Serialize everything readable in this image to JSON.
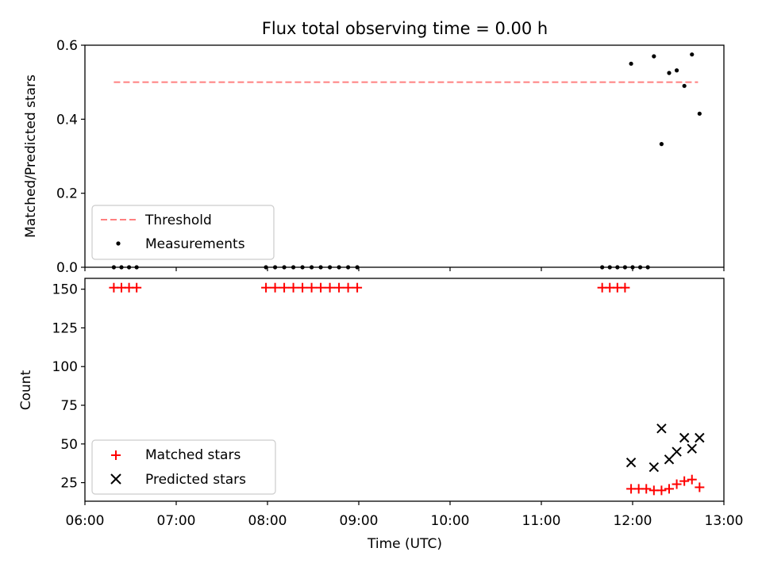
{
  "figure": {
    "title": "Flux total observing time = 0.00 h"
  },
  "chart_data": [
    {
      "type": "scatter",
      "panel": "top",
      "ylabel": "Matched/Predicted stars",
      "xlabel": "",
      "xlim": [
        "06:00",
        "13:00"
      ],
      "ylim": [
        0,
        0.6
      ],
      "yticks": [
        0.0,
        0.2,
        0.4,
        0.6
      ],
      "ytick_labels": [
        "0.0",
        "0.2",
        "0.4",
        "0.6"
      ],
      "xticks": [
        "06:00",
        "07:00",
        "08:00",
        "09:00",
        "10:00",
        "11:00",
        "12:00",
        "13:00"
      ],
      "legend_position": "lower-left",
      "series": [
        {
          "name": "Threshold",
          "kind": "dashed-line",
          "color": "#ff8080",
          "x": [
            "06:19",
            "12:43"
          ],
          "y": [
            0.5,
            0.5
          ]
        },
        {
          "name": "Measurements",
          "kind": "dots",
          "color": "#000000",
          "x": [
            "06:19",
            "06:24",
            "06:29",
            "06:34",
            "07:59",
            "08:05",
            "08:11",
            "08:17",
            "08:23",
            "08:29",
            "08:35",
            "08:41",
            "08:47",
            "08:53",
            "08:59",
            "11:40",
            "11:45",
            "11:50",
            "11:55",
            "12:00",
            "12:05",
            "12:10",
            "11:59",
            "12:14",
            "12:19",
            "12:24",
            "12:29",
            "12:34",
            "12:39",
            "12:44"
          ],
          "y": [
            0,
            0,
            0,
            0,
            0,
            0,
            0,
            0,
            0,
            0,
            0,
            0,
            0,
            0,
            0,
            0,
            0,
            0,
            0,
            0,
            0,
            0,
            0.55,
            0.57,
            0.333,
            0.525,
            0.532,
            0.49,
            0.575,
            0.415
          ]
        }
      ]
    },
    {
      "type": "scatter",
      "panel": "bottom",
      "ylabel": "Count",
      "xlabel": "Time (UTC)",
      "xlim": [
        "06:00",
        "13:00"
      ],
      "ylim": [
        13,
        157
      ],
      "yticks": [
        25,
        50,
        75,
        100,
        125,
        150
      ],
      "ytick_labels": [
        "25",
        "50",
        "75",
        "100",
        "125",
        "150"
      ],
      "xticks": [
        "06:00",
        "07:00",
        "08:00",
        "09:00",
        "10:00",
        "11:00",
        "12:00",
        "13:00"
      ],
      "xtick_labels": [
        "06:00",
        "07:00",
        "08:00",
        "09:00",
        "10:00",
        "11:00",
        "12:00",
        "13:00"
      ],
      "legend_position": "lower-left",
      "series": [
        {
          "name": "Matched stars",
          "kind": "plus",
          "color": "#ff0000",
          "x": [
            "06:19",
            "06:24",
            "06:29",
            "06:34",
            "07:59",
            "08:05",
            "08:11",
            "08:17",
            "08:23",
            "08:29",
            "08:35",
            "08:41",
            "08:47",
            "08:53",
            "08:59",
            "11:40",
            "11:45",
            "11:50",
            "11:55",
            "11:59",
            "12:04",
            "12:09",
            "12:14",
            "12:19",
            "12:24",
            "12:29",
            "12:34",
            "12:39",
            "12:44"
          ],
          "y": [
            151,
            151,
            151,
            151,
            151,
            151,
            151,
            151,
            151,
            151,
            151,
            151,
            151,
            151,
            151,
            151,
            151,
            151,
            151,
            21,
            21,
            21,
            20,
            20,
            21,
            24,
            26,
            27,
            22
          ]
        },
        {
          "name": "Predicted stars",
          "kind": "x",
          "color": "#000000",
          "x": [
            "11:59",
            "12:14",
            "12:19",
            "12:24",
            "12:29",
            "12:34",
            "12:39",
            "12:44"
          ],
          "y": [
            38,
            35,
            60,
            40,
            45,
            54,
            47,
            54
          ]
        }
      ]
    }
  ]
}
